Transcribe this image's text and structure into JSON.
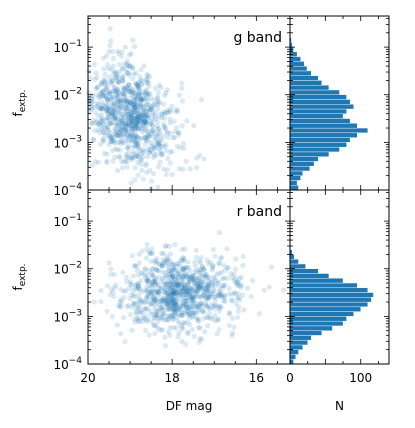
{
  "chart_data": [
    {
      "type": "scatter",
      "panel": "top",
      "annotation": "g band",
      "xlabel": "",
      "ylabel_main": "f",
      "ylabel_sub": "extp.",
      "xlim": [
        20,
        15.2
      ],
      "ylim": [
        0.0001,
        0.45
      ],
      "yscale": "log",
      "yticks": [
        0.0001,
        0.001,
        0.01,
        0.1
      ],
      "yticklabels": [
        [
          "10",
          "−4"
        ],
        [
          "10",
          "−3"
        ],
        [
          "10",
          "−2"
        ],
        [
          "10",
          "−1"
        ]
      ],
      "color": "#1f77b4",
      "cloud": {
        "x_center": 19.0,
        "x_spread": 0.55,
        "y_center_log10": -2.45,
        "y_spread_log10": 0.55,
        "trend": -0.35,
        "n_points": 900
      }
    },
    {
      "type": "bar",
      "panel": "top-histogram",
      "orientation": "horizontal",
      "xlabel": "",
      "xlim": [
        0,
        140
      ],
      "ylim": [
        0.0001,
        0.45
      ],
      "yscale": "log",
      "color": "#1f77b4",
      "bins_log10": [
        -4.0,
        -3.9,
        -3.8,
        -3.7,
        -3.6,
        -3.5,
        -3.4,
        -3.3,
        -3.2,
        -3.1,
        -3.0,
        -2.9,
        -2.8,
        -2.7,
        -2.6,
        -2.5,
        -2.4,
        -2.3,
        -2.2,
        -2.1,
        -2.0,
        -1.9,
        -1.8,
        -1.7,
        -1.6,
        -1.5,
        -1.4,
        -1.3,
        -1.2,
        -1.1,
        -1.0,
        -0.9
      ],
      "counts": [
        12,
        10,
        15,
        18,
        28,
        34,
        40,
        55,
        70,
        80,
        85,
        95,
        110,
        95,
        85,
        75,
        80,
        90,
        85,
        80,
        70,
        55,
        45,
        40,
        30,
        24,
        20,
        15,
        10,
        5,
        3,
        2
      ]
    },
    {
      "type": "scatter",
      "panel": "bottom",
      "annotation": "r band",
      "xlabel": "DF mag",
      "ylabel_main": "f",
      "ylabel_sub": "extp.",
      "xlim": [
        20,
        15.2
      ],
      "ylim": [
        0.0001,
        0.45
      ],
      "yscale": "log",
      "xticks": [
        20,
        18,
        16
      ],
      "yticks": [
        0.0001,
        0.001,
        0.01,
        0.1
      ],
      "yticklabels": [
        [
          "10",
          "−4"
        ],
        [
          "10",
          "−3"
        ],
        [
          "10",
          "−2"
        ],
        [
          "10",
          "−1"
        ]
      ],
      "color": "#1f77b4",
      "cloud": {
        "x_center": 17.8,
        "x_spread": 0.7,
        "y_center_log10": -2.5,
        "y_spread_log10": 0.42,
        "trend": 0.0,
        "n_points": 900
      }
    },
    {
      "type": "bar",
      "panel": "bottom-histogram",
      "orientation": "horizontal",
      "xlabel": "N",
      "xlim": [
        0,
        140
      ],
      "xticks": [
        0,
        100
      ],
      "ylim": [
        0.0001,
        0.45
      ],
      "yscale": "log",
      "color": "#1f77b4",
      "bins_log10": [
        -4.0,
        -3.9,
        -3.8,
        -3.7,
        -3.6,
        -3.5,
        -3.4,
        -3.3,
        -3.2,
        -3.1,
        -3.0,
        -2.9,
        -2.8,
        -2.7,
        -2.6,
        -2.5,
        -2.4,
        -2.3,
        -2.2,
        -2.1,
        -2.0,
        -1.9,
        -1.8,
        -1.7,
        -1.6
      ],
      "counts": [
        5,
        8,
        12,
        18,
        25,
        30,
        45,
        60,
        75,
        80,
        90,
        100,
        110,
        115,
        118,
        110,
        95,
        75,
        55,
        40,
        22,
        12,
        6,
        3,
        1
      ]
    }
  ]
}
